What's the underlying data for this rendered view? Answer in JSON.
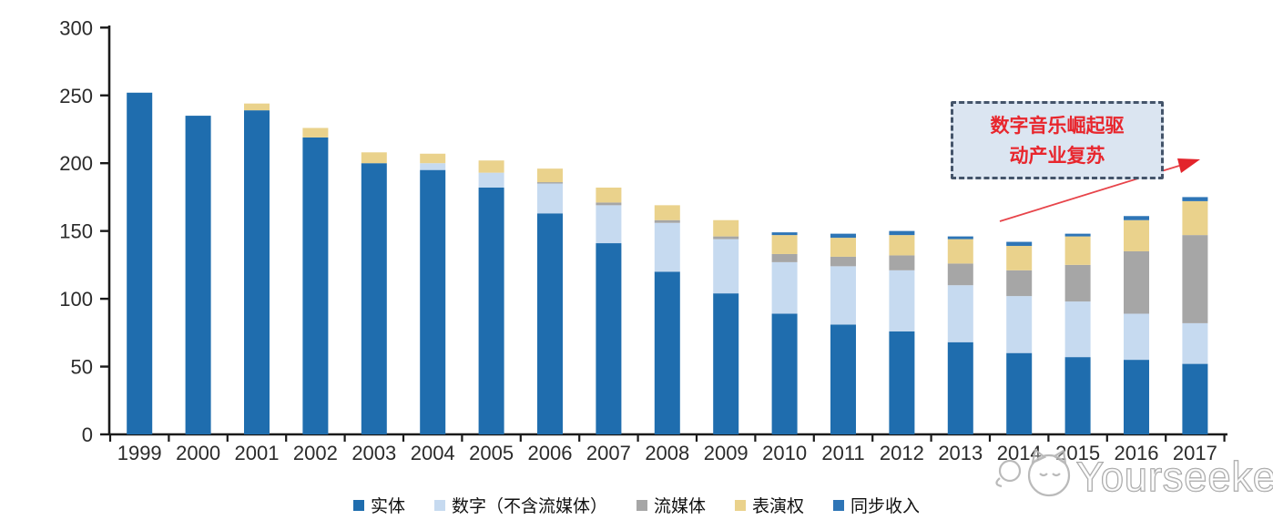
{
  "chart_data": {
    "type": "bar",
    "stacked": true,
    "title": "",
    "xlabel": "",
    "ylabel": "",
    "categories": [
      "1999",
      "2000",
      "2001",
      "2002",
      "2003",
      "2004",
      "2005",
      "2006",
      "2007",
      "2008",
      "2009",
      "2010",
      "2011",
      "2012",
      "2013",
      "2014",
      "2015",
      "2016",
      "2017"
    ],
    "series": [
      {
        "name": "实体",
        "color": "#1f6dae",
        "values": [
          252,
          235,
          239,
          219,
          200,
          195,
          182,
          163,
          141,
          120,
          104,
          89,
          81,
          76,
          68,
          60,
          57,
          55,
          52
        ]
      },
      {
        "name": "数字（不含流媒体）",
        "color": "#c6daf0",
        "values": [
          0,
          0,
          0,
          0,
          0,
          5,
          11,
          22,
          28,
          36,
          40,
          38,
          43,
          45,
          42,
          42,
          41,
          34,
          30
        ]
      },
      {
        "name": "流媒体",
        "color": "#a6a6a6",
        "values": [
          0,
          0,
          0,
          0,
          0,
          0,
          0,
          1,
          2,
          2,
          2,
          6,
          7,
          11,
          16,
          19,
          27,
          46,
          65
        ]
      },
      {
        "name": "表演权",
        "color": "#ead28c",
        "values": [
          0,
          0,
          5,
          7,
          8,
          7,
          9,
          10,
          11,
          11,
          12,
          14,
          14,
          15,
          18,
          18,
          21,
          23,
          25
        ]
      },
      {
        "name": "同步收入",
        "color": "#2e75b6",
        "values": [
          0,
          0,
          0,
          0,
          0,
          0,
          0,
          0,
          0,
          0,
          0,
          2,
          3,
          3,
          2,
          3,
          2,
          3,
          3
        ]
      }
    ],
    "ylim": [
      0,
      300
    ],
    "ytick_step": 50,
    "yticks": [
      "0",
      "50",
      "100",
      "150",
      "200",
      "250",
      "300"
    ],
    "grid": false,
    "legend_position": "bottom"
  },
  "annotation": {
    "line1": "数字音乐崛起驱",
    "line2": "动产业复苏",
    "text_color": "#e8262d",
    "box_fill": "#dbe5f1",
    "border_color": "#44546a",
    "arrow_color": "#e3242b"
  },
  "watermark": {
    "brand": "Yourseeker"
  },
  "axis": {
    "line_color": "#1a1a1a",
    "label_color": "#2b2b2b"
  }
}
